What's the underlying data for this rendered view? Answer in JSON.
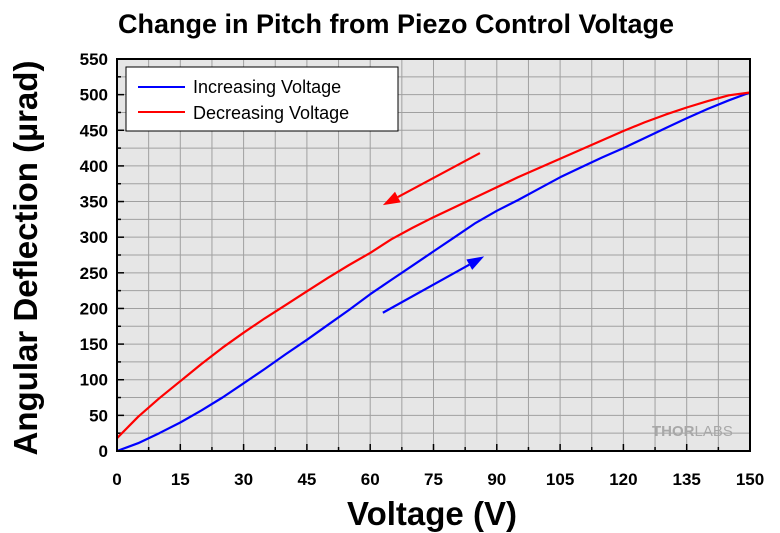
{
  "chart_data": {
    "type": "line",
    "title": "Change in Pitch from Piezo Control Voltage",
    "xlabel": "Voltage (V)",
    "ylabel": "Angular Deflection (µrad)",
    "xlim": [
      0,
      150
    ],
    "ylim": [
      0,
      550
    ],
    "xticks": [
      0,
      15,
      30,
      45,
      60,
      75,
      90,
      105,
      120,
      135,
      150
    ],
    "yticks": [
      0,
      50,
      100,
      150,
      200,
      250,
      300,
      350,
      400,
      450,
      500,
      550
    ],
    "grid": true,
    "legend_position": "top-left",
    "series": [
      {
        "name": "Increasing Voltage",
        "color": "#0000ff",
        "x": [
          0,
          5,
          10,
          15,
          20,
          25,
          30,
          35,
          40,
          45,
          50,
          55,
          60,
          65,
          70,
          75,
          80,
          85,
          90,
          95,
          100,
          105,
          110,
          115,
          120,
          125,
          130,
          135,
          140,
          145,
          150
        ],
        "y": [
          0,
          11,
          25,
          40,
          57,
          75,
          95,
          115,
          136,
          156,
          177,
          198,
          220,
          240,
          260,
          280,
          300,
          320,
          337,
          352,
          368,
          384,
          398,
          412,
          425,
          439,
          453,
          467,
          480,
          492,
          503
        ]
      },
      {
        "name": "Decreasing Voltage",
        "color": "#ff0000",
        "x": [
          0,
          5,
          10,
          15,
          20,
          25,
          30,
          35,
          40,
          45,
          50,
          55,
          60,
          65,
          70,
          75,
          80,
          85,
          90,
          95,
          100,
          105,
          110,
          115,
          120,
          125,
          130,
          135,
          140,
          145,
          150
        ],
        "y": [
          18,
          48,
          74,
          98,
          122,
          145,
          166,
          186,
          205,
          224,
          243,
          261,
          278,
          297,
          313,
          328,
          342,
          356,
          370,
          384,
          397,
          410,
          423,
          436,
          449,
          461,
          472,
          482,
          491,
          499,
          503
        ]
      }
    ],
    "annotations": [
      {
        "type": "arrow",
        "color": "#ff0000",
        "from": [
          86,
          418
        ],
        "to": [
          63,
          345
        ]
      },
      {
        "type": "arrow",
        "color": "#0000ff",
        "from": [
          63,
          194
        ],
        "to": [
          87,
          273
        ]
      }
    ]
  },
  "watermark": {
    "part1": "THOR",
    "part2": "LABS"
  }
}
